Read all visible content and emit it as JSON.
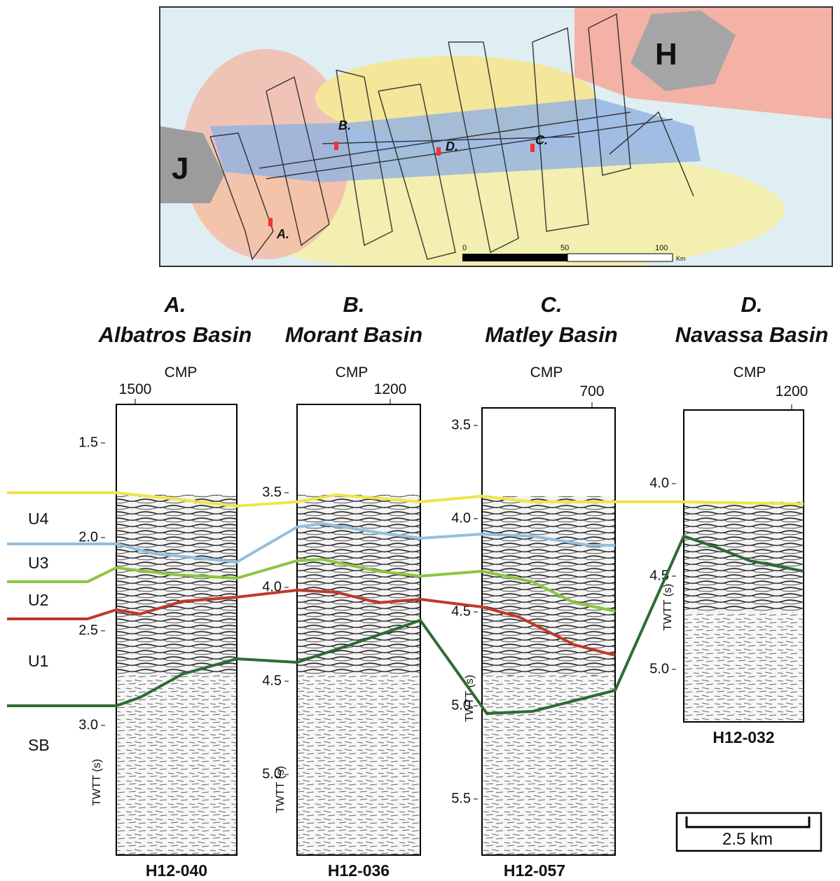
{
  "map": {
    "islands": [
      "J",
      "H"
    ],
    "sites": [
      "A.",
      "B.",
      "C.",
      "D."
    ],
    "scale": [
      "0",
      "50",
      "100"
    ],
    "scale_unit": "Km"
  },
  "panels": [
    {
      "letter": "A.",
      "name": "Albatros Basin",
      "cmp": "CMP",
      "cmp_tick": "1500",
      "ticks": [
        "1.5",
        "2.0",
        "2.5",
        "3.0"
      ],
      "axis": "TWTT (s)",
      "line": "H12-040"
    },
    {
      "letter": "B.",
      "name": "Morant Basin",
      "cmp": "CMP",
      "cmp_tick": "1200",
      "ticks": [
        "3.5",
        "4.0",
        "4.5",
        "5.0"
      ],
      "axis": "TWTT (s)",
      "line": "H12-036"
    },
    {
      "letter": "C.",
      "name": "Matley Basin",
      "cmp": "CMP",
      "cmp_tick": "700",
      "ticks": [
        "3.5",
        "4.0",
        "4.5",
        "5.0",
        "5.5"
      ],
      "axis": "TWTT (s)",
      "line": "H12-057"
    },
    {
      "letter": "D.",
      "name": "Navassa Basin",
      "cmp": "CMP",
      "cmp_tick": "1200",
      "ticks": [
        "4.0",
        "4.5",
        "5.0"
      ],
      "axis": "TWTT (s)",
      "line": "H12-032"
    }
  ],
  "units": [
    "U4",
    "U3",
    "U2",
    "U1",
    "SB"
  ],
  "scale_bar": "2.5 km"
}
